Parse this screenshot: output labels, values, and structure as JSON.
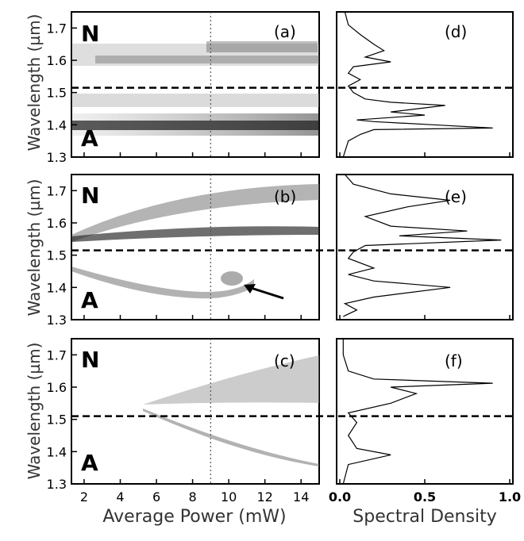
{
  "axes": {
    "x_label": "Average Power (mW)",
    "y_label": "Wavelength (µm)",
    "spectral_label": "Spectral Density",
    "x_ticks": [
      "2",
      "4",
      "6",
      "8",
      "10",
      "12",
      "14"
    ],
    "y_ticks": [
      "1.3",
      "1.4",
      "1.5",
      "1.6",
      "1.7"
    ],
    "density_ticks": [
      "0.0",
      "0.5",
      "1.0"
    ]
  },
  "region_labels": {
    "normal": "N",
    "anomalous": "A"
  },
  "chart_data": [
    {
      "type": "heatmap",
      "panel": "(a)",
      "xlim": [
        1.3,
        15
      ],
      "ylim": [
        1.3,
        1.75
      ],
      "dashed_line_y": 1.515,
      "dotted_line_x": 9,
      "bands": [
        {
          "y": 1.385,
          "intensity": 0.85
        },
        {
          "y": 1.42,
          "intensity": 0.5
        },
        {
          "y": 1.45,
          "intensity": 0.35
        },
        {
          "y": 1.61,
          "intensity": 0.4
        },
        {
          "y": 1.64,
          "intensity": 0.45
        },
        {
          "y": 1.67,
          "intensity": 0.3
        }
      ]
    },
    {
      "type": "line",
      "panel": "(d)",
      "xlim": [
        0,
        1
      ],
      "ylim": [
        1.3,
        1.75
      ],
      "dashed_line_y": 1.515,
      "points": [
        [
          0.02,
          1.3
        ],
        [
          0.05,
          1.35
        ],
        [
          0.12,
          1.37
        ],
        [
          0.2,
          1.385
        ],
        [
          0.9,
          1.39
        ],
        [
          0.55,
          1.4
        ],
        [
          0.2,
          1.41
        ],
        [
          0.1,
          1.415
        ],
        [
          0.5,
          1.43
        ],
        [
          0.3,
          1.44
        ],
        [
          0.62,
          1.46
        ],
        [
          0.3,
          1.47
        ],
        [
          0.15,
          1.48
        ],
        [
          0.08,
          1.5
        ],
        [
          0.05,
          1.52
        ],
        [
          0.12,
          1.54
        ],
        [
          0.05,
          1.56
        ],
        [
          0.08,
          1.58
        ],
        [
          0.3,
          1.595
        ],
        [
          0.15,
          1.61
        ],
        [
          0.26,
          1.63
        ],
        [
          0.2,
          1.65
        ],
        [
          0.12,
          1.68
        ],
        [
          0.05,
          1.71
        ],
        [
          0.03,
          1.75
        ]
      ]
    },
    {
      "type": "heatmap",
      "panel": "(b)",
      "xlim": [
        1.3,
        15
      ],
      "ylim": [
        1.3,
        1.75
      ],
      "dashed_line_y": 1.515,
      "dotted_line_x": 9,
      "annotation": {
        "type": "arrow",
        "target": [
          10.8,
          1.41
        ]
      },
      "bands": [
        {
          "y_start": 1.56,
          "y_end": 1.69,
          "intensity": 0.6
        },
        {
          "y_start": 1.545,
          "y_end": 1.58,
          "intensity": 0.75
        },
        {
          "y_start": 1.45,
          "y_end": 1.385,
          "intensity": 0.45
        }
      ]
    },
    {
      "type": "line",
      "panel": "(e)",
      "xlim": [
        0,
        1
      ],
      "ylim": [
        1.3,
        1.75
      ],
      "dashed_line_y": 1.515,
      "points": [
        [
          0.02,
          1.31
        ],
        [
          0.1,
          1.33
        ],
        [
          0.03,
          1.35
        ],
        [
          0.2,
          1.37
        ],
        [
          0.65,
          1.4
        ],
        [
          0.2,
          1.42
        ],
        [
          0.05,
          1.44
        ],
        [
          0.2,
          1.46
        ],
        [
          0.05,
          1.49
        ],
        [
          0.08,
          1.51
        ],
        [
          0.15,
          1.53
        ],
        [
          0.95,
          1.547
        ],
        [
          0.35,
          1.56
        ],
        [
          0.75,
          1.575
        ],
        [
          0.3,
          1.59
        ],
        [
          0.15,
          1.62
        ],
        [
          0.4,
          1.65
        ],
        [
          0.65,
          1.67
        ],
        [
          0.3,
          1.69
        ],
        [
          0.08,
          1.72
        ],
        [
          0.03,
          1.75
        ]
      ]
    },
    {
      "type": "heatmap",
      "panel": "(c)",
      "xlim": [
        1.3,
        15
      ],
      "ylim": [
        1.3,
        1.75
      ],
      "dashed_line_y": 1.51,
      "dotted_line_x": 9,
      "bands": [
        {
          "y_start": 1.55,
          "y_end": 1.67,
          "intensity": 0.45
        },
        {
          "y_start": 1.47,
          "y_end": 1.35,
          "intensity": 0.5
        }
      ]
    },
    {
      "type": "line",
      "panel": "(f)",
      "xlim": [
        0,
        1
      ],
      "ylim": [
        1.3,
        1.75
      ],
      "dashed_line_y": 1.51,
      "points": [
        [
          0.02,
          1.3
        ],
        [
          0.05,
          1.36
        ],
        [
          0.3,
          1.39
        ],
        [
          0.1,
          1.41
        ],
        [
          0.05,
          1.45
        ],
        [
          0.1,
          1.49
        ],
        [
          0.05,
          1.52
        ],
        [
          0.3,
          1.55
        ],
        [
          0.45,
          1.58
        ],
        [
          0.3,
          1.6
        ],
        [
          0.9,
          1.612
        ],
        [
          0.2,
          1.625
        ],
        [
          0.05,
          1.65
        ],
        [
          0.02,
          1.7
        ],
        [
          0.02,
          1.75
        ]
      ]
    }
  ]
}
